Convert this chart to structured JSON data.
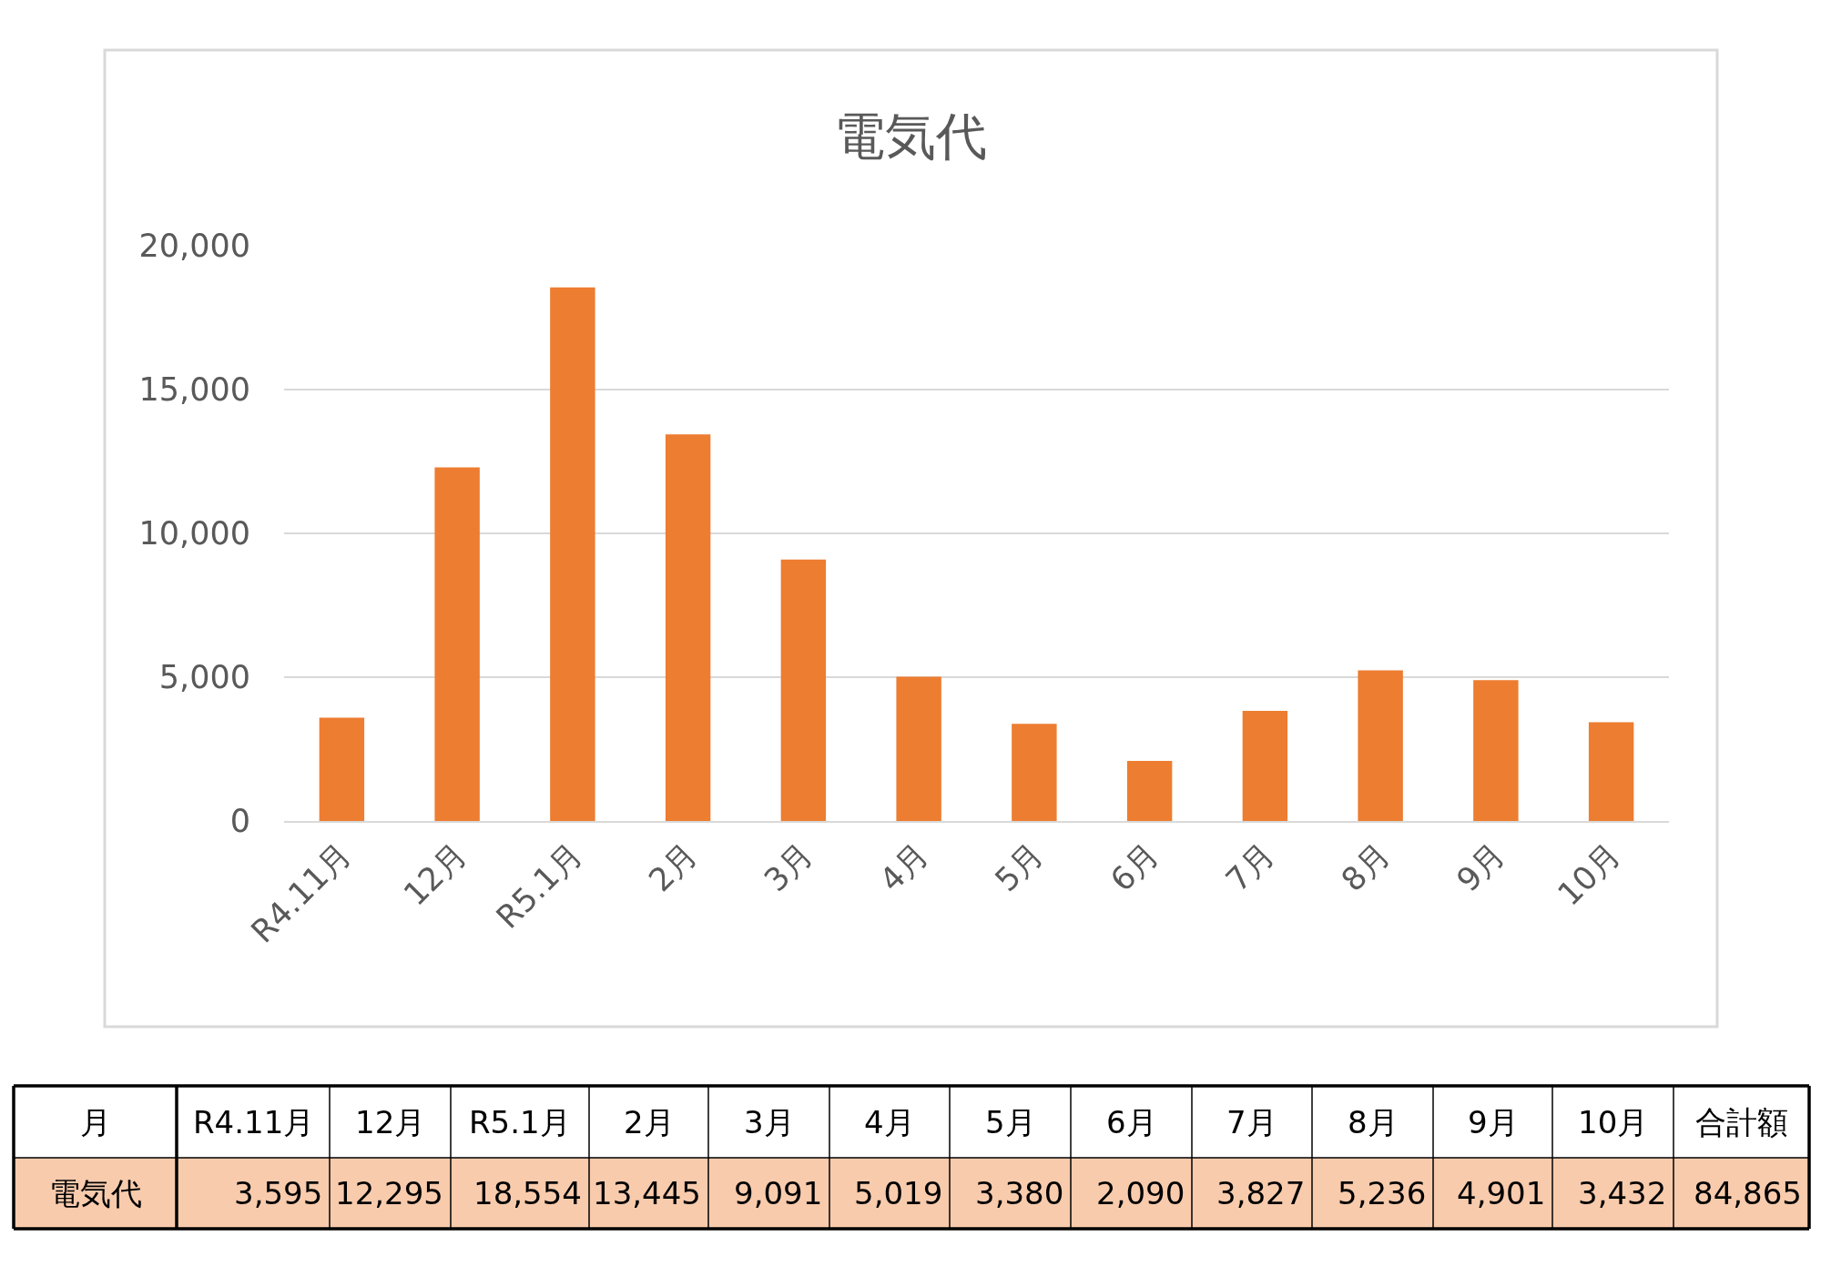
{
  "chart_data": {
    "type": "bar",
    "title": "電気代",
    "categories": [
      "R4.11月",
      "12月",
      "R5.1月",
      "2月",
      "3月",
      "4月",
      "5月",
      "6月",
      "7月",
      "8月",
      "9月",
      "10月"
    ],
    "values": [
      3595,
      12295,
      18554,
      13445,
      9091,
      5019,
      3380,
      2090,
      3827,
      5236,
      4901,
      3432
    ],
    "value_labels": [
      "3,595",
      "12,295",
      "18,554",
      "13,445",
      "9,091",
      "5,019",
      "3,380",
      "2,090",
      "3,827",
      "5,236",
      "4,901",
      "3,432"
    ],
    "color": "#ed7d31",
    "ylim": [
      0,
      20000
    ],
    "yticks": [
      0,
      {
        "value": 5000,
        "label": "5,000"
      },
      {
        "value": 10000,
        "label": "10,000"
      },
      {
        "value": 15000,
        "label": "15,000"
      },
      {
        "value": 20000,
        "label": "20,000"
      }
    ],
    "grid": "y",
    "annotations": [
      "月",
      "電気代",
      "合計額",
      "84,865"
    ]
  }
}
